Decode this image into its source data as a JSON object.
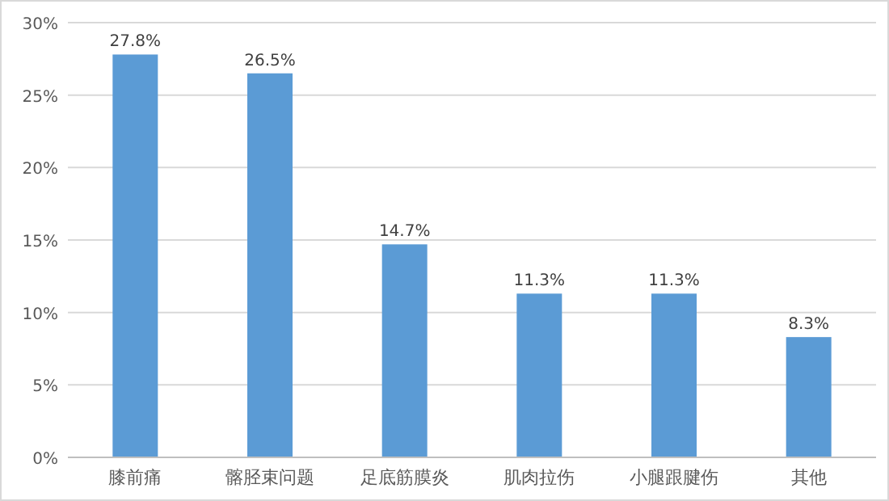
{
  "chart_data": {
    "type": "bar",
    "categories": [
      "膝前痛",
      "髂胫束问题",
      "足底筋膜炎",
      "肌肉拉伤",
      "小腿跟腱伤",
      "其他"
    ],
    "values": [
      27.8,
      26.5,
      14.7,
      11.3,
      11.3,
      8.3
    ],
    "value_labels": [
      "27.8%",
      "26.5%",
      "14.7%",
      "11.3%",
      "11.3%",
      "8.3%"
    ],
    "color": "#5b9bd5",
    "ylim": [
      0,
      30
    ],
    "yticks": [
      {
        "value": 0,
        "label": "0%"
      },
      {
        "value": 5,
        "label": "5%"
      },
      {
        "value": 10,
        "label": "10%"
      },
      {
        "value": 15,
        "label": "15%"
      },
      {
        "value": 20,
        "label": "20%"
      },
      {
        "value": 25,
        "label": "25%"
      },
      {
        "value": 30,
        "label": "30%"
      }
    ],
    "grid": "y"
  }
}
